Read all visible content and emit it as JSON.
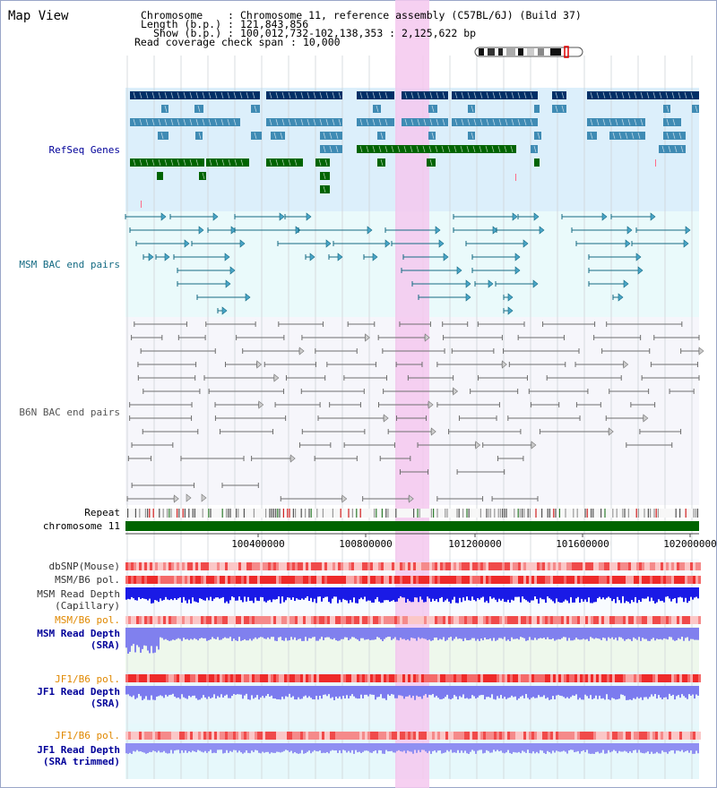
{
  "title": "Map View",
  "info": {
    "chromosome_key": "Chromosome",
    "chromosome_val": "Chromosome 11, reference assembly (C57BL/6J) (Build 37)",
    "length_key": "Length (b.p.)",
    "length_val": "121,843,856",
    "show_key": "Show (b.p.)",
    "show_val": "100,012,732-102,138,353 : 2,125,622 bp",
    "coverage_key": "Read coverage check span",
    "coverage_val": "10,000",
    "separator": ":"
  },
  "tracks": {
    "refseq": "RefSeq Genes",
    "msm_bac": "MSM BAC end pairs",
    "b6n_bac": "B6N BAC end pairs",
    "repeat": "Repeat",
    "chromosome": "chromosome 11",
    "dbsnp": "dbSNP(Mouse)",
    "msm_b6_pol_1": "MSM/B6 pol.",
    "msm_read_depth_cap_1": "MSM Read Depth",
    "msm_read_depth_cap_2": "(Capillary)",
    "msm_b6_pol_2": "MSM/B6 pol.",
    "msm_read_depth_sra_1": "MSM Read Depth",
    "msm_read_depth_sra_2": "(SRA)",
    "jf1_b6_pol_1": "JF1/B6 pol.",
    "jf1_read_depth_1": "JF1 Read Depth",
    "jf1_read_depth_2": "(SRA)",
    "jf1_b6_pol_2": "JF1/B6 pol.",
    "jf1_read_depth_trim_1": "JF1 Read Depth",
    "jf1_read_depth_trim_2": "(SRA trimmed)"
  },
  "axis": {
    "ticks": [
      "100400000",
      "100800000",
      "101200000",
      "101600000",
      "102000000"
    ]
  },
  "colors": {
    "gene_navy": "#002f66",
    "gene_steel": "#3f8bb4",
    "gene_green": "#006400",
    "msm_bac": "#156b83",
    "b6n_bac": "#6f6f6f",
    "highlight": "#f7c8ef",
    "label_blue": "#000099",
    "label_orange": "#e08800"
  }
}
